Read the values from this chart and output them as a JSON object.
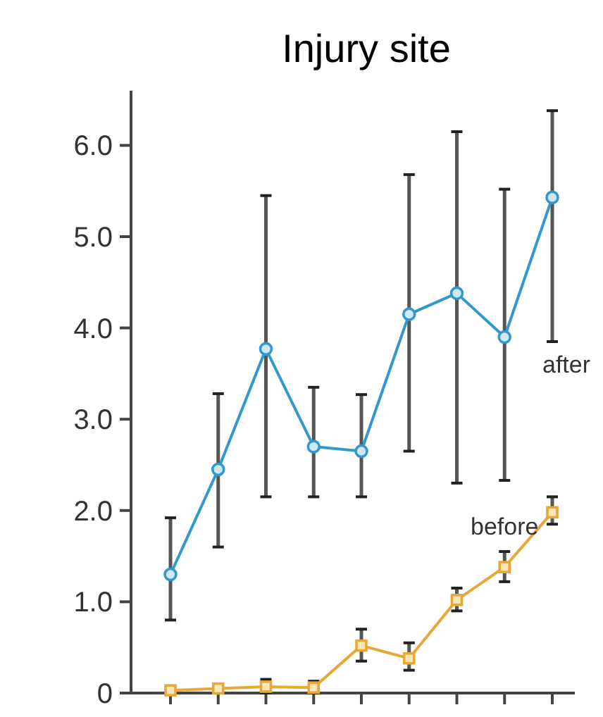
{
  "chart_data": {
    "type": "line",
    "title": "Injury site",
    "categories": [
      null,
      null,
      null,
      null,
      null,
      null,
      null,
      null,
      null
    ],
    "ylim": [
      0,
      6.6
    ],
    "yticks": [
      0,
      {
        "value": 1,
        "label": "1.0"
      },
      {
        "value": 2,
        "label": "2.0"
      },
      {
        "value": 3,
        "label": "3.0"
      },
      {
        "value": 4,
        "label": "4.0"
      },
      {
        "value": 5,
        "label": "5.0"
      },
      {
        "value": 6,
        "label": "6.0"
      }
    ],
    "grid": false,
    "line_style": "solid",
    "series": [
      {
        "name": "after",
        "color": "#3399cc",
        "marker": "circle",
        "values": [
          1.3,
          2.45,
          3.77,
          2.7,
          2.65,
          4.15,
          4.38,
          3.9,
          5.43
        ],
        "errors": [
          [
            0.8,
            1.92
          ],
          [
            1.6,
            3.28
          ],
          [
            2.15,
            5.45
          ],
          [
            2.15,
            3.35
          ],
          [
            2.15,
            3.27
          ],
          [
            2.65,
            5.68
          ],
          [
            2.3,
            6.15
          ],
          [
            2.33,
            5.52
          ],
          [
            3.85,
            6.38
          ]
        ]
      },
      {
        "name": "before",
        "color": "#e8a838",
        "marker": "square",
        "values": [
          0.03,
          0.05,
          0.07,
          0.06,
          0.52,
          0.38,
          1.02,
          1.38,
          1.98
        ],
        "errors": [
          null,
          null,
          [
            0,
            0.15
          ],
          [
            0,
            0.13
          ],
          [
            0.35,
            0.7
          ],
          [
            0.25,
            0.55
          ],
          [
            0.9,
            1.15
          ],
          [
            1.22,
            1.55
          ],
          [
            1.85,
            2.15
          ]
        ]
      }
    ]
  }
}
